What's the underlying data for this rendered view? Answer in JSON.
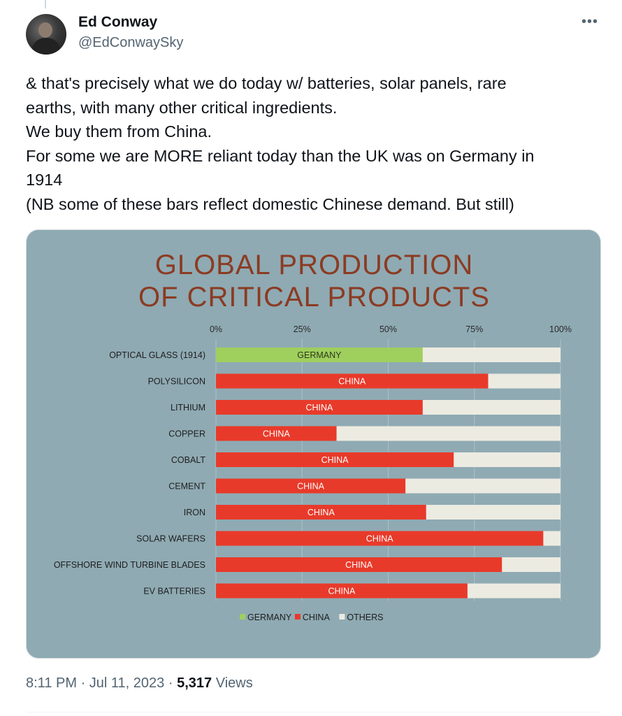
{
  "author": {
    "name": "Ed Conway",
    "handle": "@EdConwaySky"
  },
  "more_icon": "•••",
  "tweet_lines": [
    "& that's precisely what we do today w/ batteries, solar panels, rare",
    "earths, with many other critical ingredients.",
    "We buy them from China.",
    "For some we are MORE reliant today than the UK was on Germany in",
    "1914",
    "(NB some of these bars reflect domestic Chinese demand. But still)"
  ],
  "chart_data": {
    "type": "bar",
    "orientation": "horizontal",
    "stacked": true,
    "title": "GLOBAL PRODUCTION OF CRITICAL PRODUCTS",
    "title_lines": [
      "GLOBAL PRODUCTION",
      "OF CRITICAL PRODUCTS"
    ],
    "x_ticks": [
      "0%",
      "25%",
      "50%",
      "75%",
      "100%"
    ],
    "xlim": [
      0,
      100
    ],
    "categories": [
      "OPTICAL GLASS (1914)",
      "POLYSILICON",
      "LITHIUM",
      "COPPER",
      "COBALT",
      "CEMENT",
      "IRON",
      "SOLAR WAFERS",
      "OFFSHORE WIND TURBINE BLADES",
      "EV BATTERIES"
    ],
    "leaders": [
      "GERMANY",
      "CHINA",
      "CHINA",
      "CHINA",
      "CHINA",
      "CHINA",
      "CHINA",
      "CHINA",
      "CHINA",
      "CHINA"
    ],
    "leader_share": [
      60,
      79,
      60,
      35,
      69,
      55,
      61,
      95,
      83,
      73
    ],
    "legend": [
      {
        "label": "GERMANY",
        "color": "#9fcf5d"
      },
      {
        "label": "CHINA",
        "color": "#e83a2a"
      },
      {
        "label": "OTHERS",
        "color": "#ecebe1"
      }
    ],
    "colors": {
      "GERMANY": "#9fcf5d",
      "CHINA": "#e83a2a",
      "OTHERS": "#ecebe1"
    }
  },
  "timestamp": {
    "time": "8:11 PM",
    "date": "Jul 11, 2023",
    "sep": "·",
    "views_count": "5,317",
    "views_label": "Views"
  }
}
